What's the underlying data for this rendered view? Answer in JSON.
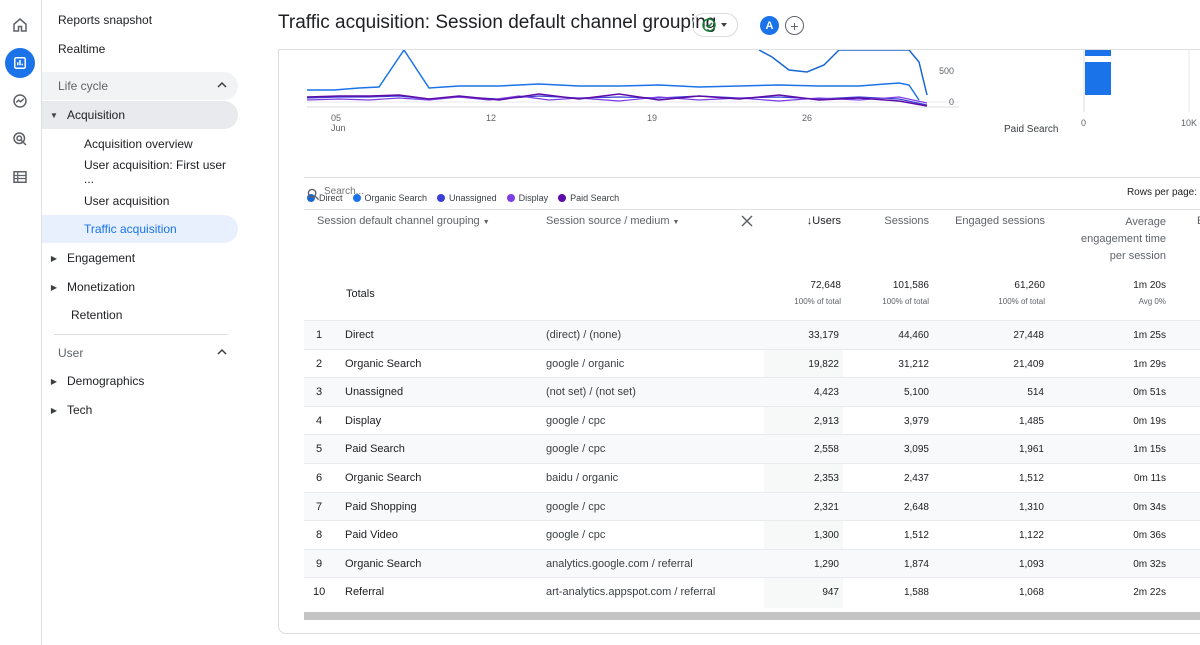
{
  "rail": {
    "icons": [
      "home-icon",
      "reports-icon",
      "explore-icon",
      "advertising-icon",
      "list-icon"
    ]
  },
  "nav": {
    "reports_snapshot": "Reports snapshot",
    "realtime": "Realtime",
    "lifecycle": "Life cycle",
    "acquisition": "Acquisition",
    "acquisition_overview": "Acquisition overview",
    "user_acquisition_first": "User acquisition: First user ...",
    "user_acquisition": "User acquisition",
    "traffic_acquisition": "Traffic acquisition",
    "engagement": "Engagement",
    "monetization": "Monetization",
    "retention": "Retention",
    "user_section": "User",
    "demographics": "Demographics",
    "tech": "Tech"
  },
  "header": {
    "title": "Traffic acquisition: Session default channel grouping",
    "avatar_letter": "A",
    "add_symbol": "+"
  },
  "chart_data": [
    {
      "type": "line",
      "x_ticks": [
        "05\nJun",
        "12",
        "19",
        "26"
      ],
      "y_ticks": [
        "500",
        "0"
      ],
      "series": [
        {
          "name": "Direct",
          "color": "#1967d2"
        },
        {
          "name": "Organic Search",
          "color": "#1a73e8"
        },
        {
          "name": "Unassigned",
          "color": "#3b3fd8"
        },
        {
          "name": "Display",
          "color": "#7b3fe4"
        },
        {
          "name": "Paid Search",
          "color": "#5c0da8"
        }
      ]
    },
    {
      "type": "bar",
      "categories": [
        "Paid Search"
      ],
      "x_ticks": [
        "0",
        "10K"
      ]
    }
  ],
  "legend": {
    "direct": "Direct",
    "organic": "Organic Search",
    "unassigned": "Unassigned",
    "display": "Display",
    "paid": "Paid Search"
  },
  "bar_label": "Paid Search",
  "table": {
    "search_placeholder": "Search...",
    "rows_per_page": "Rows per page:",
    "headers": {
      "channel": "Session default channel grouping",
      "source": "Session source / medium",
      "users": "Users",
      "sessions": "Sessions",
      "engaged": "Engaged sessions",
      "avg1": "Average",
      "avg2": "engagement time",
      "avg3": "per session",
      "cut": "E"
    },
    "totals": {
      "label": "Totals",
      "users": "72,648",
      "users_pct": "100% of total",
      "sessions": "101,586",
      "sessions_pct": "100% of total",
      "engaged": "61,260",
      "engaged_pct": "100% of total",
      "avg": "1m 20s",
      "avg_pct": "Avg 0%"
    },
    "rows": [
      {
        "idx": "1",
        "channel": "Direct",
        "source": "(direct) / (none)",
        "users": "33,179",
        "sessions": "44,460",
        "engaged": "27,448",
        "avg": "1m 25s"
      },
      {
        "idx": "2",
        "channel": "Organic Search",
        "source": "google / organic",
        "users": "19,822",
        "sessions": "31,212",
        "engaged": "21,409",
        "avg": "1m 29s"
      },
      {
        "idx": "3",
        "channel": "Unassigned",
        "source": "(not set) / (not set)",
        "users": "4,423",
        "sessions": "5,100",
        "engaged": "514",
        "avg": "0m 51s"
      },
      {
        "idx": "4",
        "channel": "Display",
        "source": "google / cpc",
        "users": "2,913",
        "sessions": "3,979",
        "engaged": "1,485",
        "avg": "0m 19s"
      },
      {
        "idx": "5",
        "channel": "Paid Search",
        "source": "google / cpc",
        "users": "2,558",
        "sessions": "3,095",
        "engaged": "1,961",
        "avg": "1m 15s"
      },
      {
        "idx": "6",
        "channel": "Organic Search",
        "source": "baidu / organic",
        "users": "2,353",
        "sessions": "2,437",
        "engaged": "1,512",
        "avg": "0m 11s"
      },
      {
        "idx": "7",
        "channel": "Paid Shopping",
        "source": "google / cpc",
        "users": "2,321",
        "sessions": "2,648",
        "engaged": "1,310",
        "avg": "0m 34s"
      },
      {
        "idx": "8",
        "channel": "Paid Video",
        "source": "google / cpc",
        "users": "1,300",
        "sessions": "1,512",
        "engaged": "1,122",
        "avg": "0m 36s"
      },
      {
        "idx": "9",
        "channel": "Organic Search",
        "source": "analytics.google.com / referral",
        "users": "1,290",
        "sessions": "1,874",
        "engaged": "1,093",
        "avg": "0m 32s"
      },
      {
        "idx": "10",
        "channel": "Referral",
        "source": "art-analytics.appspot.com / referral",
        "users": "947",
        "sessions": "1,588",
        "engaged": "1,068",
        "avg": "2m 22s"
      }
    ]
  }
}
